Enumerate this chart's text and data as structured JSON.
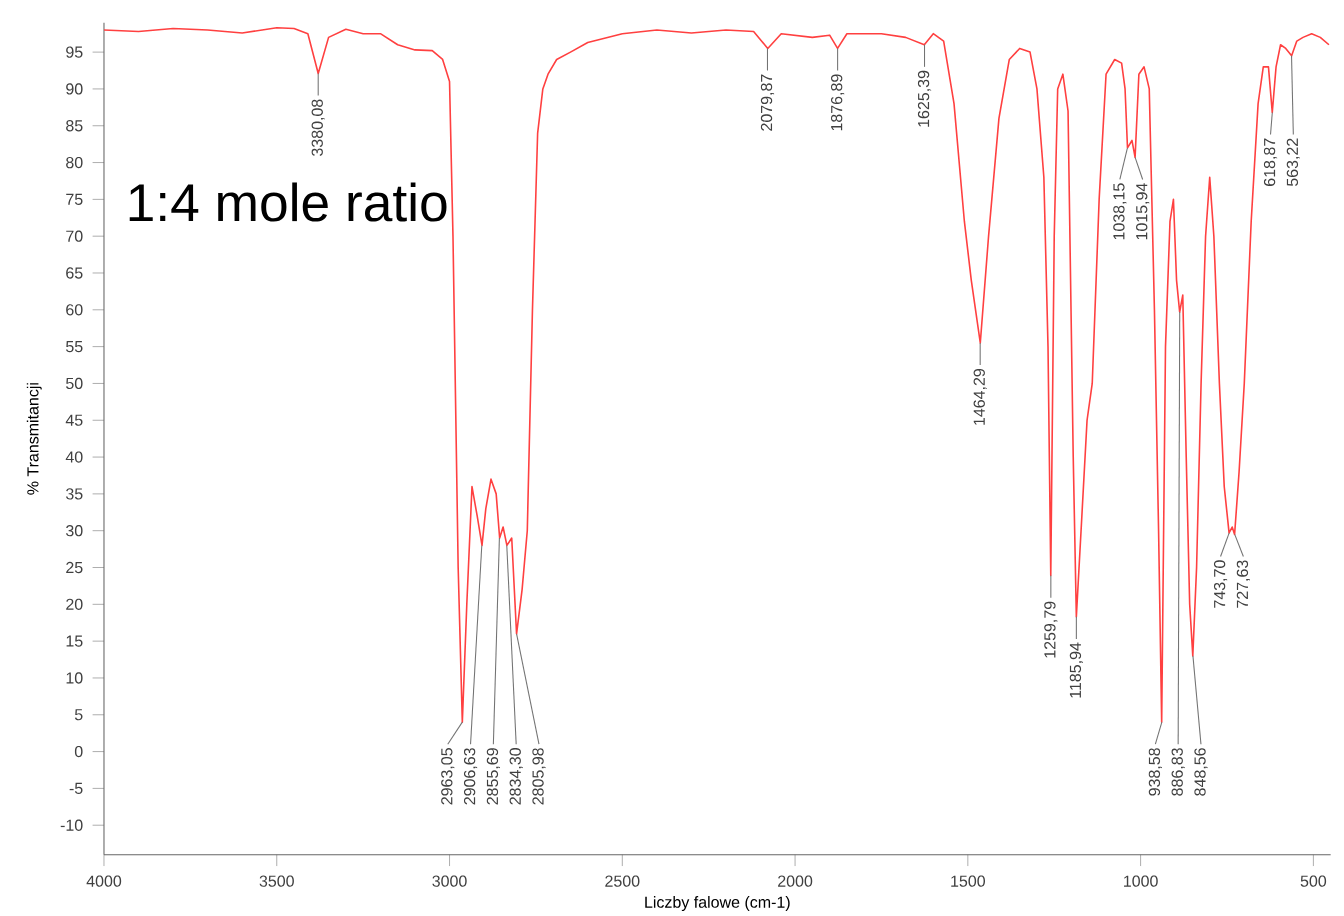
{
  "chart_data": {
    "type": "line",
    "title": "1:4 mole ratio",
    "xlabel": "Liczby falowe (cm-1)",
    "ylabel": "% Transmitancji",
    "xlim": [
      4000,
      450
    ],
    "ylim": [
      -14,
      99
    ],
    "xticks": [
      4000,
      3500,
      3000,
      2500,
      2000,
      1500,
      1000,
      500
    ],
    "yticks": [
      -10,
      -5,
      0,
      5,
      10,
      15,
      20,
      25,
      30,
      35,
      40,
      45,
      50,
      55,
      60,
      65,
      70,
      75,
      80,
      85,
      90,
      95
    ],
    "grid": false,
    "marker": "none",
    "line_style": "solid",
    "series": [
      {
        "color": "#ff4040",
        "x": [
          4000,
          3900,
          3800,
          3700,
          3600,
          3500,
          3450,
          3410,
          3380,
          3350,
          3300,
          3250,
          3200,
          3150,
          3100,
          3050,
          3020,
          3000,
          2990,
          2975,
          2963,
          2950,
          2935,
          2920,
          2906,
          2895,
          2880,
          2865,
          2855,
          2845,
          2834,
          2820,
          2806,
          2790,
          2775,
          2760,
          2745,
          2730,
          2715,
          2690,
          2650,
          2600,
          2500,
          2400,
          2300,
          2200,
          2120,
          2079,
          2040,
          1950,
          1900,
          1877,
          1850,
          1750,
          1680,
          1626,
          1600,
          1570,
          1540,
          1510,
          1490,
          1464,
          1440,
          1410,
          1380,
          1350,
          1320,
          1300,
          1280,
          1268,
          1260,
          1250,
          1240,
          1225,
          1210,
          1195,
          1186,
          1170,
          1155,
          1140,
          1120,
          1100,
          1075,
          1055,
          1045,
          1038,
          1025,
          1016,
          1005,
          990,
          975,
          960,
          948,
          939,
          928,
          915,
          905,
          896,
          887,
          878,
          868,
          858,
          849,
          838,
          825,
          812,
          800,
          788,
          772,
          758,
          744,
          735,
          728,
          715,
          700,
          680,
          660,
          645,
          630,
          619,
          608,
          595,
          580,
          563,
          548,
          530,
          505,
          480,
          455
        ],
        "values": [
          98,
          97.8,
          98.2,
          98,
          97.6,
          98.3,
          98.2,
          97.5,
          92.1,
          97,
          98.1,
          97.5,
          97.5,
          96,
          95.3,
          95.2,
          94,
          91,
          70,
          25,
          4,
          20,
          36,
          32,
          28,
          33,
          37,
          35,
          29,
          30.5,
          28,
          29,
          16,
          22,
          30,
          60,
          84,
          90,
          92,
          94,
          95,
          96.3,
          97.5,
          98,
          97.6,
          98,
          97.8,
          95.5,
          97.5,
          97,
          97.3,
          95.5,
          97.5,
          97.5,
          97,
          96,
          97.5,
          96.5,
          88,
          72,
          64,
          55.5,
          70,
          86,
          94,
          95.5,
          95,
          90,
          78,
          55,
          23.9,
          70,
          90,
          92,
          87,
          40,
          18.3,
          32,
          45,
          50,
          75,
          92,
          94,
          93.5,
          90,
          82,
          83,
          80.7,
          92,
          93,
          90,
          60,
          30,
          4,
          55,
          72,
          75,
          64,
          59.7,
          62,
          40,
          20,
          13,
          25,
          50,
          70,
          78,
          70,
          50,
          36,
          29.7,
          30.5,
          29.5,
          38,
          50,
          72,
          88,
          93,
          93,
          86.8,
          93,
          96,
          95.5,
          94.5,
          96.5,
          97,
          97.5,
          97,
          96
        ]
      }
    ],
    "annotations": [
      {
        "text": "3380,08",
        "x": 3380.08,
        "y": 92.1
      },
      {
        "text": "2963,05",
        "x": 2963.05,
        "y": 4
      },
      {
        "text": "2906,63",
        "x": 2906.63,
        "y": 28
      },
      {
        "text": "2855,69",
        "x": 2855.69,
        "y": 29
      },
      {
        "text": "2834,30",
        "x": 2834.3,
        "y": 28
      },
      {
        "text": "2805,98",
        "x": 2805.98,
        "y": 16
      },
      {
        "text": "2079,87",
        "x": 2079.87,
        "y": 95.5
      },
      {
        "text": "1876,89",
        "x": 1876.89,
        "y": 95.5
      },
      {
        "text": "1625,39",
        "x": 1625.39,
        "y": 96
      },
      {
        "text": "1464,29",
        "x": 1464.29,
        "y": 55.5
      },
      {
        "text": "1259,79",
        "x": 1259.79,
        "y": 23.9
      },
      {
        "text": "1185,94",
        "x": 1185.94,
        "y": 18.3
      },
      {
        "text": "1038,15",
        "x": 1038.15,
        "y": 82
      },
      {
        "text": "1015,94",
        "x": 1015.94,
        "y": 80.7
      },
      {
        "text": "938,58",
        "x": 938.58,
        "y": 4
      },
      {
        "text": "886,83",
        "x": 886.83,
        "y": 59.7
      },
      {
        "text": "848,56",
        "x": 848.56,
        "y": 13
      },
      {
        "text": "743,70",
        "x": 743.7,
        "y": 29.7
      },
      {
        "text": "727,63",
        "x": 727.63,
        "y": 29.5
      },
      {
        "text": "618,87",
        "x": 618.87,
        "y": 86.8
      },
      {
        "text": "563,22",
        "x": 563.22,
        "y": 94.5
      }
    ]
  }
}
